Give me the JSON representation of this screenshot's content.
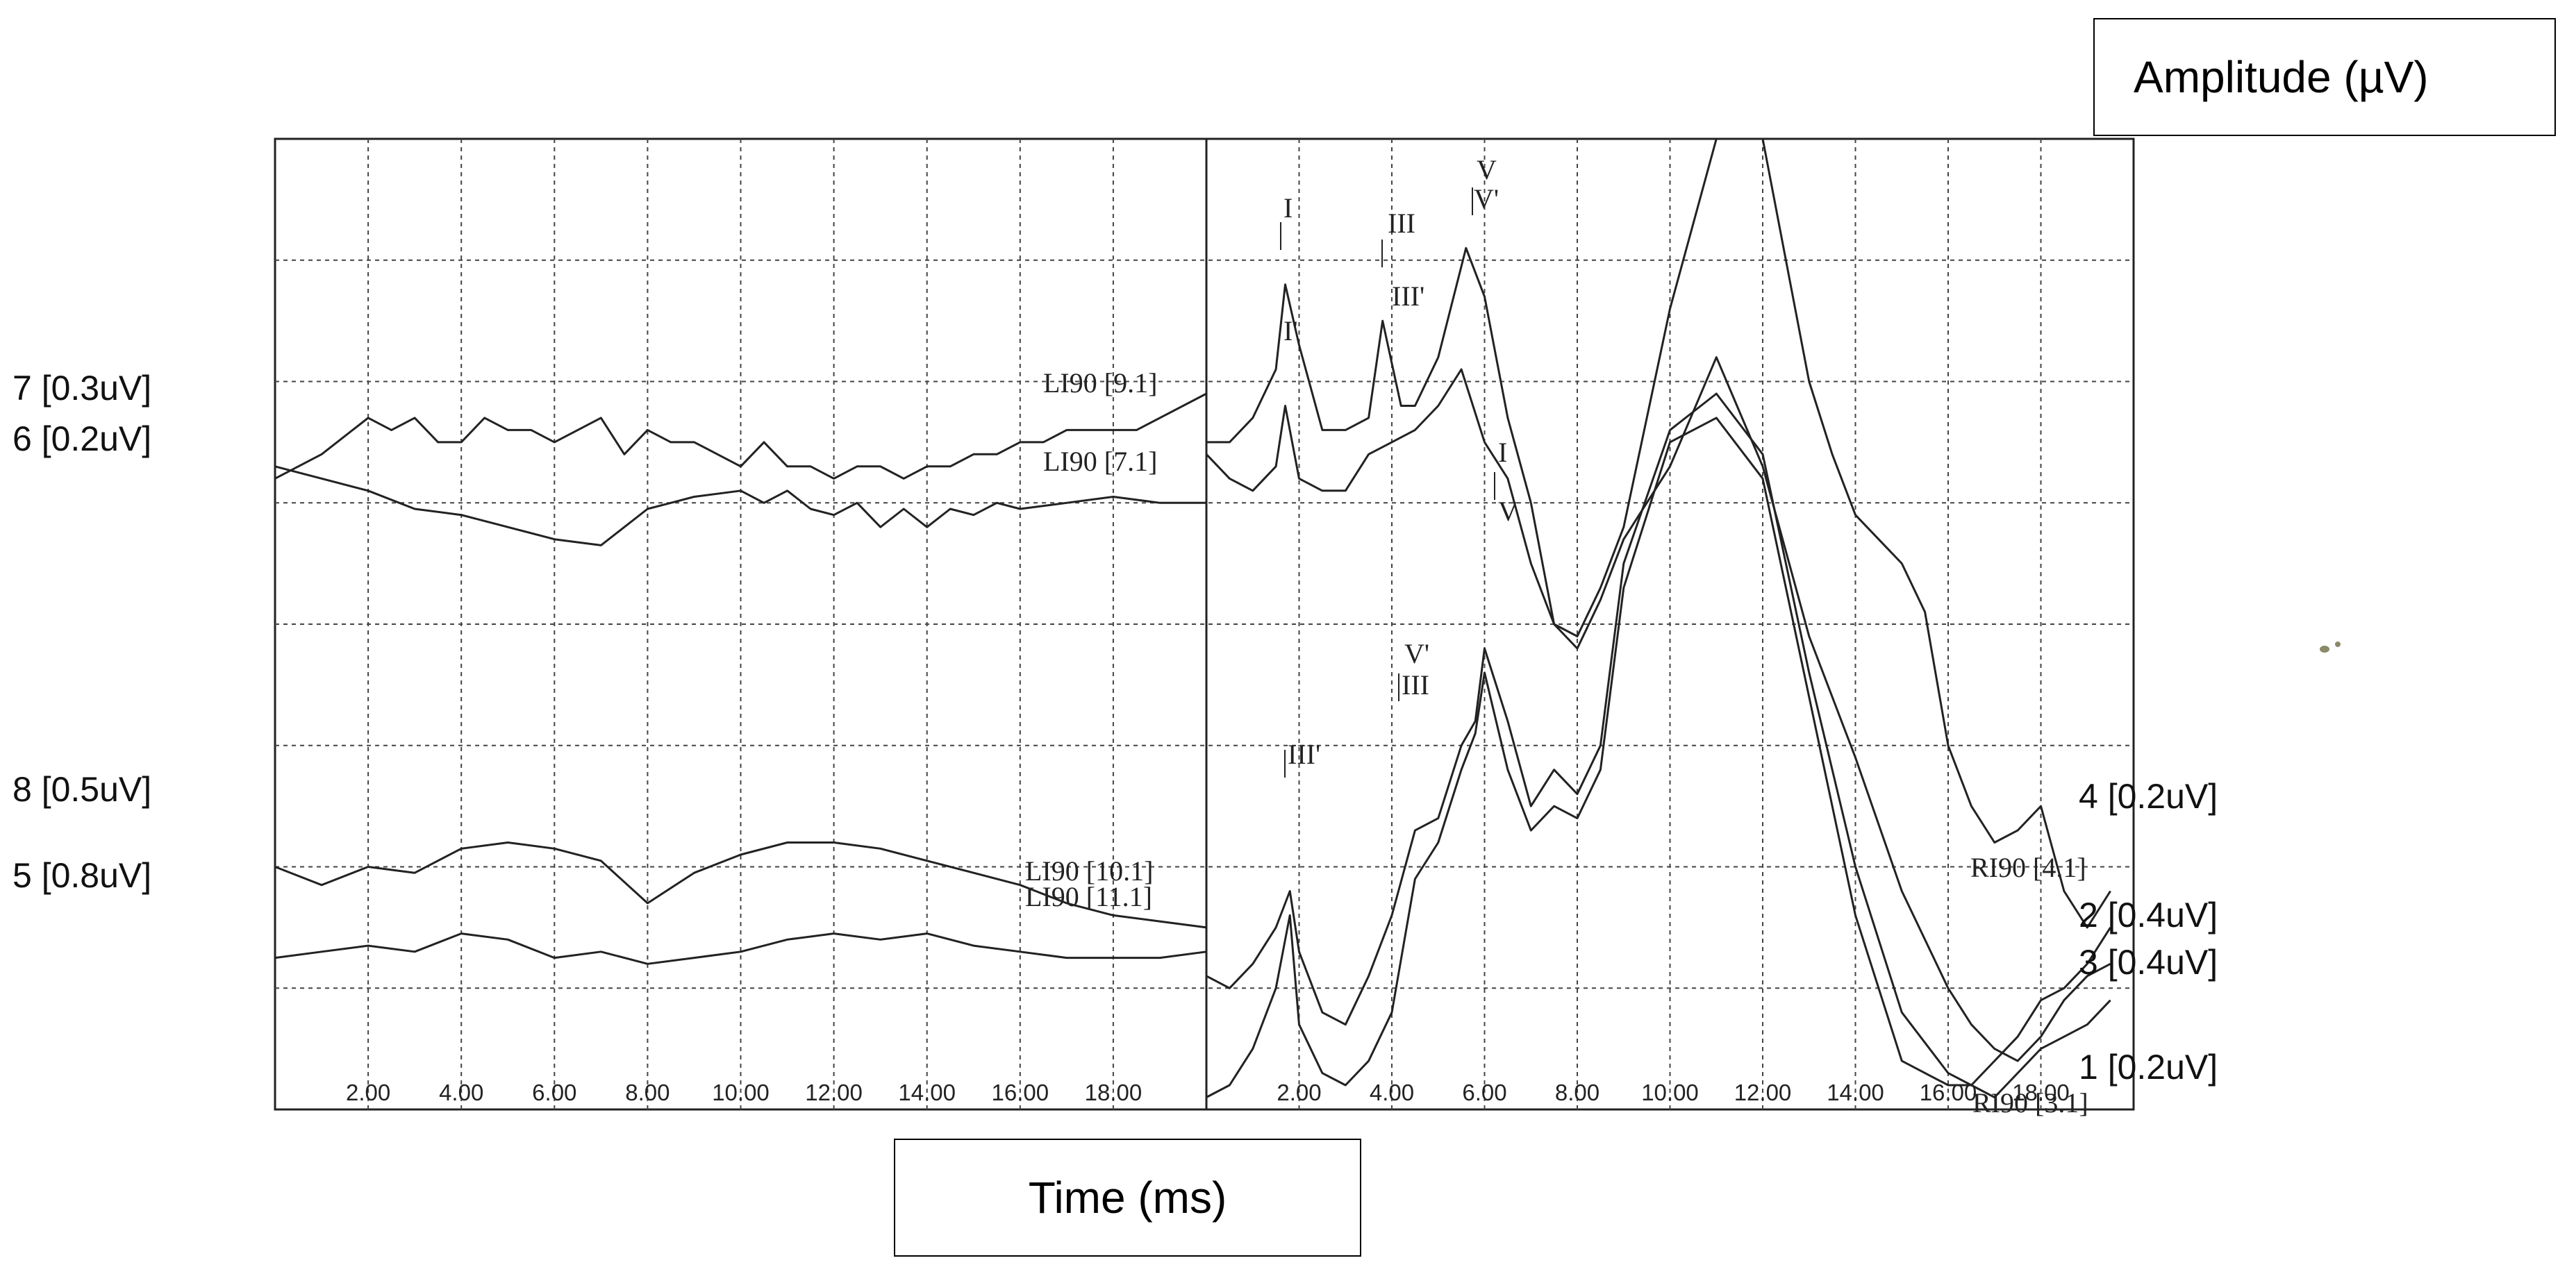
{
  "ylabel": "Amplitude (µV)",
  "xlabel": "Time (ms)",
  "left_panel_ticks": [
    "2.00",
    "4.00",
    "6.00",
    "8.00",
    "10.00",
    "12.00",
    "14.00",
    "16.00",
    "18.00"
  ],
  "right_panel_ticks": [
    "2.00",
    "4.00",
    "6.00",
    "8.00",
    "10.00",
    "12.00",
    "14.00",
    "16.00",
    "18.00"
  ],
  "channel_labels_left": [
    "7 [0.3uV]",
    "6 [0.2uV]",
    "8 [0.5uV]",
    "5 [0.8uV]"
  ],
  "channel_labels_right": [
    "4 [0.2uV]",
    "2 [0.4uV]",
    "3 [0.4uV]",
    "1 [0.2uV]"
  ],
  "trace_labels": [
    "LI90 [9.1]",
    "LI90 [7.1]",
    "LI90 [10.1]",
    "LI90 [11.1]",
    "RI90 [4.1]",
    "RI90 [3.1]"
  ],
  "peak_labels": [
    "I",
    "III",
    "V",
    "V'",
    "III'",
    "I'",
    "I",
    "V",
    "V'",
    "III",
    "III'",
    "I'"
  ],
  "chart_data": {
    "type": "line",
    "xlabel": "Time (ms)",
    "ylabel": "Amplitude (µV)",
    "panels": [
      {
        "side": "left",
        "xlim": [
          0,
          20
        ],
        "series": [
          {
            "name": "LI90 [9.1]",
            "channel": "7 [0.3uV]",
            "x": [
              0,
              1,
              2,
              2.5,
              3,
              3.5,
              4,
              4.5,
              5,
              5.5,
              6,
              6.5,
              7,
              7.5,
              8,
              8.5,
              9,
              9.5,
              10,
              10.5,
              11,
              11.5,
              12,
              12.5,
              13,
              13.5,
              14,
              14.5,
              15,
              15.5,
              16,
              16.5,
              17,
              17.5,
              18,
              18.5,
              19,
              20
            ],
            "y": [
              7.2,
              7.4,
              7.7,
              7.6,
              7.7,
              7.5,
              7.5,
              7.7,
              7.6,
              7.6,
              7.5,
              7.6,
              7.7,
              7.4,
              7.6,
              7.5,
              7.5,
              7.4,
              7.3,
              7.5,
              7.3,
              7.3,
              7.2,
              7.3,
              7.3,
              7.2,
              7.3,
              7.3,
              7.4,
              7.4,
              7.5,
              7.5,
              7.6,
              7.6,
              7.6,
              7.6,
              7.7,
              7.9
            ]
          },
          {
            "name": "LI90 [7.1]",
            "channel": "6 [0.2uV]",
            "x": [
              0,
              1,
              2,
              3,
              4,
              5,
              6,
              7,
              7.5,
              8,
              8.5,
              9,
              10,
              10.5,
              11,
              11.5,
              12,
              12.5,
              13,
              13.5,
              14,
              14.5,
              15,
              15.5,
              16,
              17,
              18,
              19,
              20
            ],
            "y": [
              7.3,
              7.2,
              7.1,
              6.95,
              6.9,
              6.8,
              6.7,
              6.65,
              6.8,
              6.95,
              7.0,
              7.05,
              7.1,
              7.0,
              7.1,
              6.95,
              6.9,
              7.0,
              6.8,
              6.95,
              6.8,
              6.95,
              6.9,
              7.0,
              6.95,
              7.0,
              7.05,
              7.0,
              7.0
            ]
          },
          {
            "name": "LI90 [10.1]",
            "channel": "8 [0.5uV]",
            "x": [
              0,
              1,
              2,
              3,
              4,
              5,
              6,
              7,
              8,
              9,
              10,
              11,
              12,
              13,
              14,
              15,
              16,
              17,
              18,
              19,
              20
            ],
            "y": [
              4.0,
              3.85,
              4.0,
              3.95,
              4.15,
              4.2,
              4.15,
              4.05,
              3.7,
              3.95,
              4.1,
              4.2,
              4.2,
              4.15,
              4.05,
              3.95,
              3.85,
              3.7,
              3.6,
              3.55,
              3.5
            ]
          },
          {
            "name": "LI90 [11.1]",
            "channel": "5 [0.8uV]",
            "x": [
              0,
              1,
              2,
              3,
              4,
              5,
              6,
              7,
              8,
              9,
              10,
              11,
              12,
              13,
              14,
              15,
              16,
              17,
              18,
              19,
              20
            ],
            "y": [
              3.25,
              3.3,
              3.35,
              3.3,
              3.45,
              3.4,
              3.25,
              3.3,
              3.2,
              3.25,
              3.3,
              3.4,
              3.45,
              3.4,
              3.45,
              3.35,
              3.3,
              3.25,
              3.25,
              3.25,
              3.3
            ]
          }
        ]
      },
      {
        "side": "right",
        "xlim": [
          0,
          20
        ],
        "series": [
          {
            "name": "RI90 [4.1]",
            "channel": "4 [0.2uV]",
            "x": [
              0,
              0.5,
              1,
              1.5,
              1.7,
              2,
              2.5,
              3,
              3.5,
              3.8,
              4.2,
              4.5,
              5,
              5.6,
              6,
              6.5,
              7,
              7.5,
              8,
              8.5,
              9,
              10,
              11,
              12,
              12.5,
              13,
              13.5,
              14,
              14.5,
              15,
              15.5,
              16,
              16.5,
              17,
              17.5,
              18,
              18.5,
              19,
              19.5
            ],
            "y": [
              7.5,
              7.5,
              7.7,
              8.1,
              8.8,
              8.3,
              7.6,
              7.6,
              7.7,
              8.5,
              7.8,
              7.8,
              8.2,
              9.1,
              8.7,
              7.7,
              7.0,
              6.0,
              5.9,
              6.3,
              6.8,
              8.6,
              10.0,
              10.0,
              9.0,
              8.0,
              7.4,
              6.9,
              6.7,
              6.5,
              6.1,
              5.0,
              4.5,
              4.2,
              4.3,
              4.5,
              3.8,
              3.5,
              3.8
            ]
          },
          {
            "name": "RI90 [3.1]",
            "channel": "1 [0.2uV]",
            "x": [
              0,
              0.5,
              1,
              1.5,
              1.7,
              2,
              2.5,
              3,
              3.5,
              4,
              4.5,
              5,
              5.5,
              6,
              6.5,
              7,
              7.5,
              8,
              8.5,
              9,
              10,
              11,
              12,
              13,
              14,
              15,
              16,
              16.5,
              17,
              17.5,
              18,
              18.5,
              19,
              19.5
            ],
            "y": [
              7.4,
              7.2,
              7.1,
              7.3,
              7.8,
              7.2,
              7.1,
              7.1,
              7.4,
              7.5,
              7.6,
              7.8,
              8.1,
              7.5,
              7.2,
              6.5,
              6.0,
              5.8,
              6.2,
              6.7,
              7.3,
              8.2,
              7.3,
              5.9,
              4.9,
              3.8,
              3.0,
              2.7,
              2.5,
              2.4,
              2.6,
              2.9,
              3.1,
              3.2
            ]
          },
          {
            "name": "2 [0.4uV]",
            "channel": "2 [0.4uV]",
            "x": [
              0,
              0.5,
              1,
              1.5,
              1.8,
              2,
              2.5,
              3,
              3.5,
              4,
              4.5,
              5,
              5.5,
              5.8,
              6,
              6.5,
              7,
              7.5,
              8,
              8.5,
              9,
              10,
              11,
              12,
              13,
              14,
              15,
              16,
              16.5,
              17,
              17.5,
              18,
              18.5,
              19,
              19.5
            ],
            "y": [
              3.1,
              3.0,
              3.2,
              3.5,
              3.8,
              3.3,
              2.8,
              2.7,
              3.1,
              3.6,
              4.3,
              4.4,
              5.0,
              5.2,
              5.8,
              5.2,
              4.5,
              4.8,
              4.6,
              5.0,
              6.5,
              7.6,
              7.9,
              7.4,
              5.6,
              4.0,
              2.8,
              2.3,
              2.2,
              2.1,
              2.3,
              2.5,
              2.6,
              2.7,
              2.9
            ]
          },
          {
            "name": "3 [0.4uV]",
            "channel": "3 [0.4uV]",
            "x": [
              0,
              0.5,
              1,
              1.5,
              1.8,
              2,
              2.5,
              3,
              3.5,
              4,
              4.5,
              5,
              5.5,
              5.8,
              6,
              6.5,
              7,
              7.5,
              8,
              8.5,
              9,
              10,
              11,
              12,
              13,
              14,
              15,
              16,
              16.5,
              17,
              17.5,
              18,
              18.5,
              19,
              19.5
            ],
            "y": [
              2.1,
              2.2,
              2.5,
              3.0,
              3.6,
              2.7,
              2.3,
              2.2,
              2.4,
              2.8,
              3.9,
              4.2,
              4.8,
              5.1,
              5.6,
              4.8,
              4.3,
              4.5,
              4.4,
              4.8,
              6.3,
              7.5,
              7.7,
              7.2,
              5.4,
              3.6,
              2.4,
              2.2,
              2.2,
              2.4,
              2.6,
              2.9,
              3.0,
              3.2,
              3.5
            ]
          }
        ]
      }
    ]
  }
}
